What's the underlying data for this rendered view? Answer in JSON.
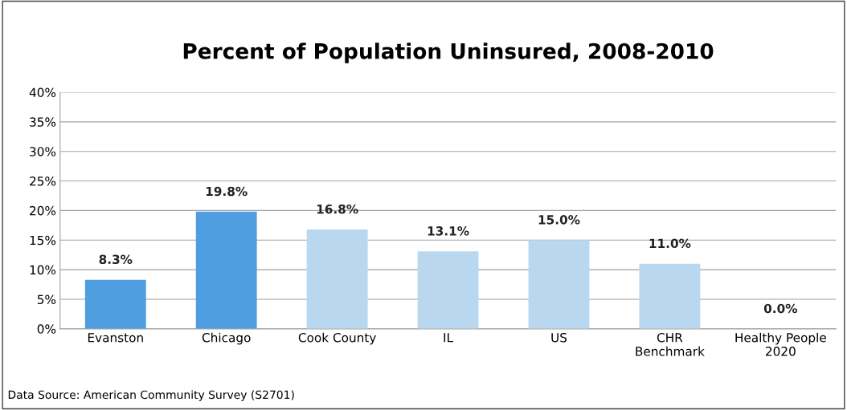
{
  "chart_data": {
    "type": "bar",
    "title": "Percent of Population Uninsured, 2008-2010",
    "categories": [
      "Evanston",
      "Chicago",
      "Cook County",
      "IL",
      "US",
      "CHR\nBenchmark",
      "Healthy People\n2020"
    ],
    "values": [
      8.3,
      19.8,
      16.8,
      13.1,
      15.0,
      11.0,
      0.0
    ],
    "colors": [
      "#4f9fe0",
      "#4f9fe0",
      "#b9d8f0",
      "#b9d8f0",
      "#b9d8f0",
      "#b9d8f0",
      "#b9d8f0"
    ],
    "value_labels": [
      "8.3%",
      "19.8%",
      "16.8%",
      "13.1%",
      "15.0%",
      "11.0%",
      "0.0%"
    ],
    "ylim": [
      0,
      40
    ],
    "yticks": [
      {
        "value": 0,
        "label": "0%"
      },
      {
        "value": 5,
        "label": "5%"
      },
      {
        "value": 10,
        "label": "10%"
      },
      {
        "value": 15,
        "label": "15%"
      },
      {
        "value": 20,
        "label": "20%"
      },
      {
        "value": 25,
        "label": "25%"
      },
      {
        "value": 30,
        "label": "30%"
      },
      {
        "value": 35,
        "label": "35%"
      },
      {
        "value": 40,
        "label": "40%"
      }
    ],
    "grid": "y",
    "annotations": [
      "Data Source: American Community Survey (S2701)"
    ]
  }
}
